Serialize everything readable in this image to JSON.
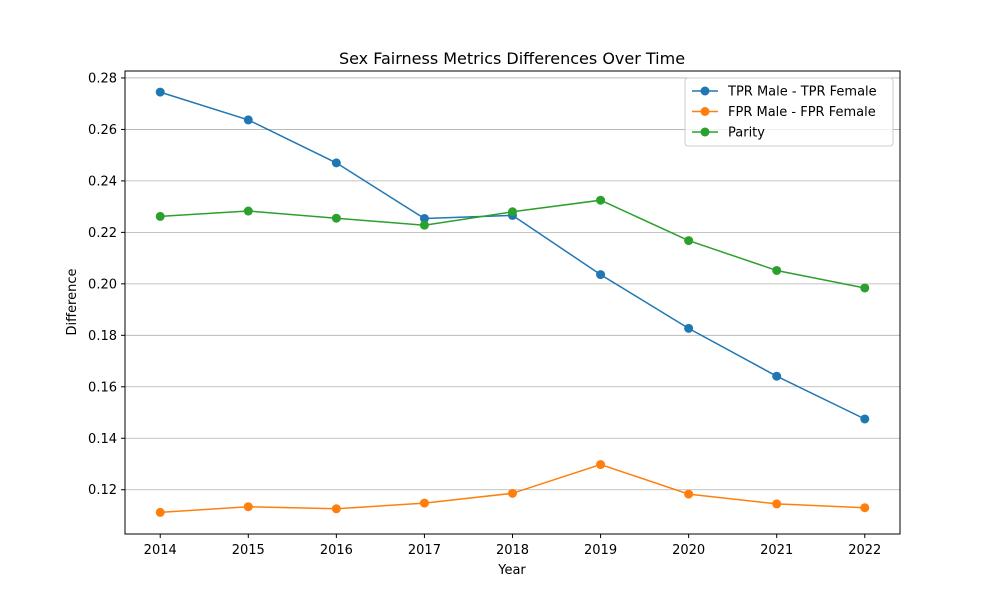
{
  "chart_data": {
    "type": "line",
    "title": "Sex Fairness Metrics Differences Over Time",
    "xlabel": "Year",
    "ylabel": "Difference",
    "x": [
      2014,
      2015,
      2016,
      2017,
      2018,
      2019,
      2020,
      2021,
      2022
    ],
    "x_tick_labels": [
      "2014",
      "2015",
      "2016",
      "2017",
      "2018",
      "2019",
      "2020",
      "2021",
      "2022"
    ],
    "y_ticks": [
      0.12,
      0.14,
      0.16,
      0.18,
      0.2,
      0.22,
      0.24,
      0.26,
      0.28
    ],
    "y_tick_labels": [
      "0.12",
      "0.14",
      "0.16",
      "0.18",
      "0.20",
      "0.22",
      "0.24",
      "0.26",
      "0.28"
    ],
    "xlim": [
      2013.6,
      2022.4
    ],
    "ylim": [
      0.1028,
      0.2827
    ],
    "grid": "horizontal",
    "legend_position": "top-right",
    "series": [
      {
        "name": "TPR Male - TPR Female",
        "color": "#1f77b4",
        "values": [
          0.2745,
          0.2637,
          0.247,
          0.2254,
          0.2266,
          0.2036,
          0.1827,
          0.1641,
          0.1475
        ]
      },
      {
        "name": "FPR Male - FPR Female",
        "color": "#ff7f0e",
        "values": [
          0.1112,
          0.1134,
          0.1126,
          0.1148,
          0.1186,
          0.1298,
          0.1183,
          0.1145,
          0.113
        ]
      },
      {
        "name": "Parity",
        "color": "#2ca02c",
        "values": [
          0.2262,
          0.2283,
          0.2255,
          0.2228,
          0.228,
          0.2325,
          0.2168,
          0.2052,
          0.1984
        ]
      }
    ]
  }
}
